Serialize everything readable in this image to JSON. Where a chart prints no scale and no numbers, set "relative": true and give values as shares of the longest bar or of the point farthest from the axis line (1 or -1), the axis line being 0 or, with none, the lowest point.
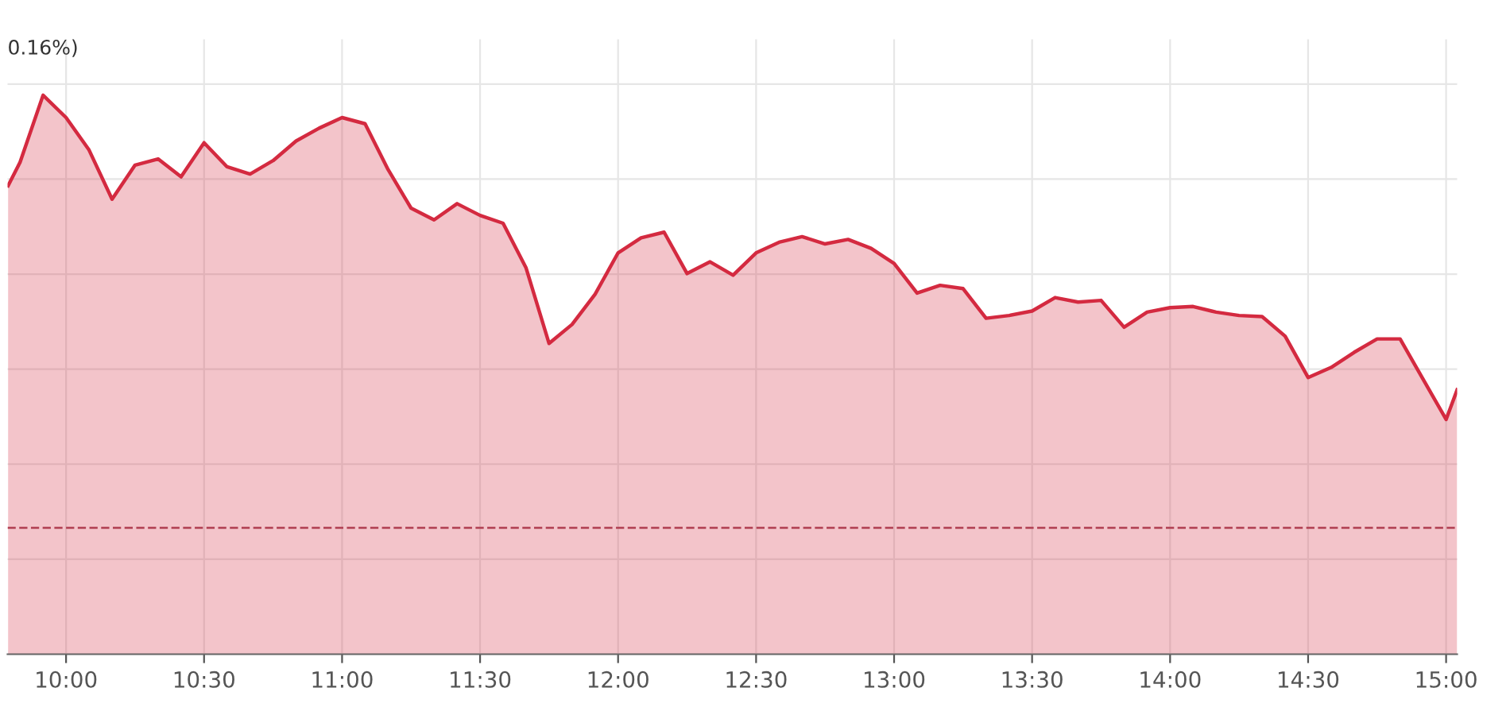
{
  "chart_data": {
    "type": "area",
    "relative": true,
    "annotations": [
      "0.16%)"
    ],
    "x": [
      9.79,
      9.8333,
      9.9167,
      10,
      10.0833,
      10.1667,
      10.25,
      10.3333,
      10.4167,
      10.5,
      10.5833,
      10.6667,
      10.75,
      10.8333,
      10.9167,
      11,
      11.0833,
      11.1667,
      11.25,
      11.3333,
      11.4167,
      11.5,
      11.5833,
      11.6667,
      11.75,
      11.8333,
      11.9167,
      12,
      12.0833,
      12.1667,
      12.25,
      12.3333,
      12.4167,
      12.5,
      12.5833,
      12.6667,
      12.75,
      12.8333,
      12.9167,
      13,
      13.0833,
      13.1667,
      13.25,
      13.3333,
      13.4167,
      13.5,
      13.5833,
      13.6667,
      13.75,
      13.8333,
      13.9167,
      14,
      14.0833,
      14.1667,
      14.25,
      14.3333,
      14.4167,
      14.5,
      14.5833,
      14.6667,
      14.75,
      14.8333,
      15,
      15.04
    ],
    "series": [
      {
        "color": "#d42a40",
        "values": [
          0.838,
          0.88,
          1.0,
          0.96,
          0.902,
          0.814,
          0.875,
          0.886,
          0.854,
          0.915,
          0.872,
          0.859,
          0.883,
          0.918,
          0.941,
          0.96,
          0.949,
          0.867,
          0.798,
          0.777,
          0.806,
          0.785,
          0.771,
          0.691,
          0.556,
          0.59,
          0.644,
          0.718,
          0.745,
          0.755,
          0.681,
          0.702,
          0.678,
          0.718,
          0.737,
          0.747,
          0.734,
          0.742,
          0.726,
          0.699,
          0.646,
          0.66,
          0.654,
          0.601,
          0.606,
          0.614,
          0.638,
          0.63,
          0.633,
          0.585,
          0.612,
          0.62,
          0.622,
          0.612,
          0.606,
          0.604,
          0.569,
          0.495,
          0.513,
          0.54,
          0.564,
          0.564,
          0.42,
          0.473
        ]
      }
    ],
    "xlim": [
      9.788,
      15.04
    ],
    "xticks": [
      {
        "value": 10,
        "label": "10:00"
      },
      {
        "value": 10.5,
        "label": "10:30"
      },
      {
        "value": 11,
        "label": "11:00"
      },
      {
        "value": 11.5,
        "label": "11:30"
      },
      {
        "value": 12,
        "label": "12:00"
      },
      {
        "value": 12.5,
        "label": "12:30"
      },
      {
        "value": 13,
        "label": "13:00"
      },
      {
        "value": 13.5,
        "label": "13:30"
      },
      {
        "value": 14,
        "label": "14:00"
      },
      {
        "value": 14.5,
        "label": "14:30"
      },
      {
        "value": 15,
        "label": "15:00"
      }
    ],
    "ref_lines": [
      {
        "axis": "y",
        "value": 0.226,
        "color": "#b5485a",
        "line_style": "dashed"
      }
    ],
    "grid": true,
    "marker": "none",
    "line_style": "solid",
    "legend": false
  }
}
